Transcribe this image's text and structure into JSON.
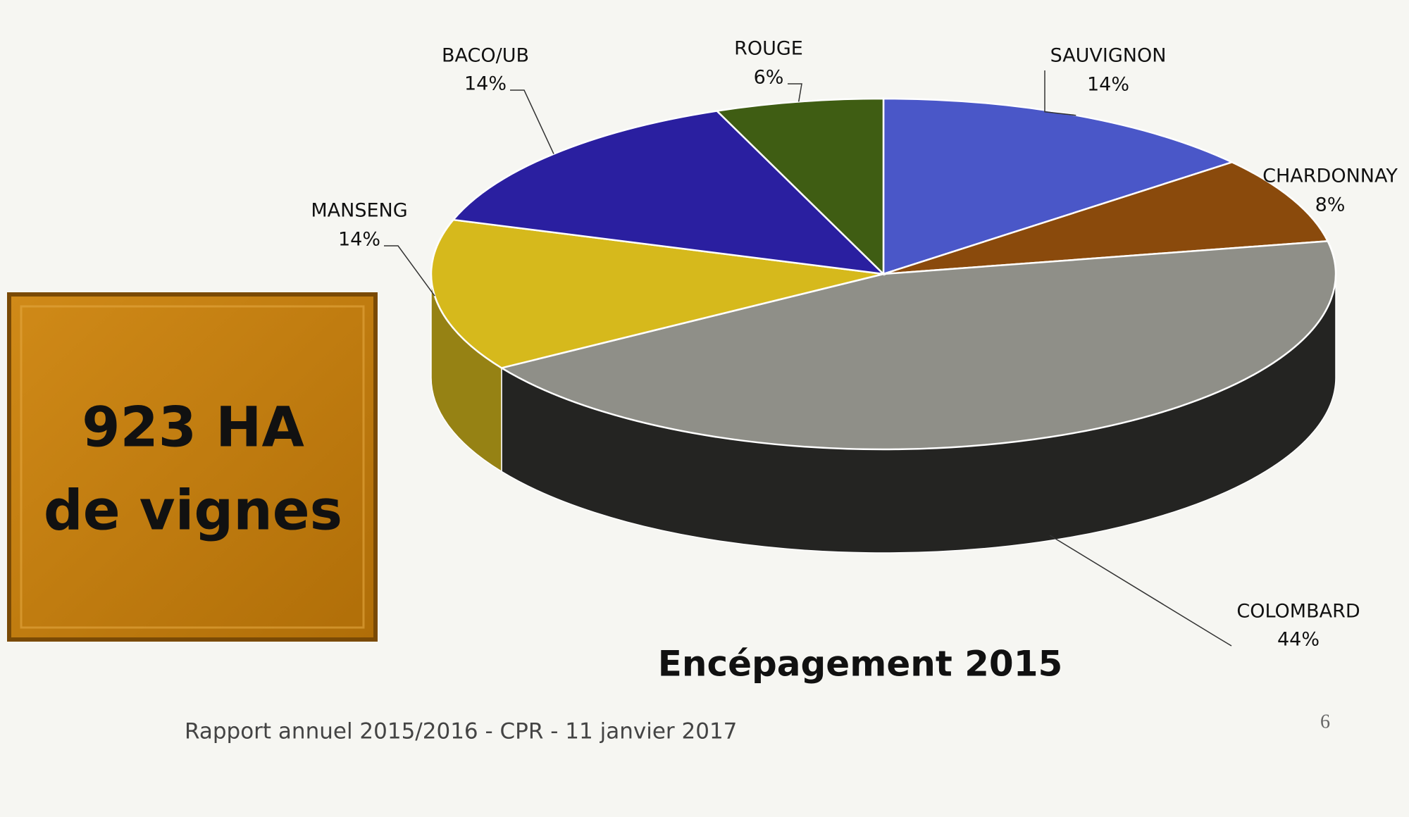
{
  "chart_data": {
    "type": "pie",
    "title": "Encépagement 2015",
    "categories": [
      "SAUVIGNON",
      "CHARDONNAY",
      "COLOMBARD",
      "MANSENG",
      "BACO/UB",
      "ROUGE"
    ],
    "values": [
      14,
      8,
      44,
      14,
      14,
      6
    ],
    "value_labels": [
      "14%",
      "8%",
      "44%",
      "14%",
      "14%",
      "6%"
    ],
    "colors": [
      "#4a57c8",
      "#8a4a0c",
      "#8f8f88",
      "#d6b91c",
      "#2a1fa0",
      "#3f5d13"
    ]
  },
  "callout": {
    "lines": [
      "923 HA",
      "de vignes"
    ]
  },
  "footer": {
    "text": "Rapport annuel 2015/2016 - CPR - 11 janvier 2017",
    "page_number": "6"
  }
}
